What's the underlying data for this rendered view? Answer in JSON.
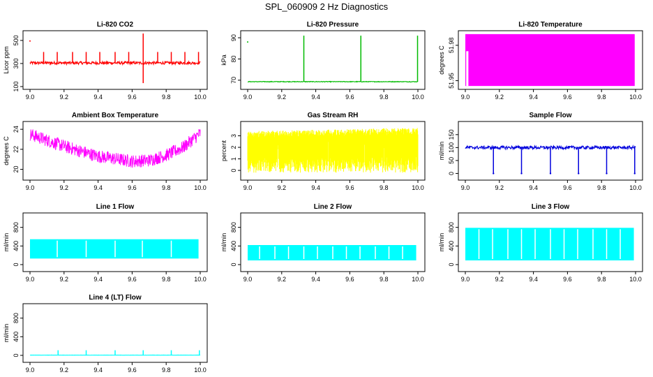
{
  "figure": {
    "title": "SPL_060909  2 Hz Diagnostics"
  },
  "chart_data": [
    {
      "id": "p1",
      "type": "line",
      "title": "Li-820 CO2",
      "ylabel": "Licor ppm",
      "color": "#ff0000",
      "xlim": [
        9.0,
        10.0
      ],
      "ylim": [
        100,
        560
      ],
      "xticks": [
        "9.0",
        "9.2",
        "9.4",
        "9.6",
        "9.8",
        "10.0"
      ],
      "yticks": [
        "100",
        "300",
        "500"
      ],
      "series": [
        {
          "name": "CO2",
          "pattern": "spikes",
          "base": 305,
          "noise": 12,
          "spikes_at": [
            9.08,
            9.16,
            9.25,
            9.33,
            9.41,
            9.5,
            9.58,
            9.75,
            9.83,
            9.91,
            9.99
          ],
          "spike_top": 400,
          "extreme_at": 9.665,
          "extreme_range": [
            130,
            560
          ],
          "outliers": [
            {
              "x": 9.0,
              "y": 495
            }
          ]
        }
      ]
    },
    {
      "id": "p2",
      "type": "line",
      "title": "Li-820 Pressure",
      "ylabel": "kPa",
      "color": "#00bb00",
      "xlim": [
        9.0,
        10.0
      ],
      "ylim": [
        67,
        92
      ],
      "xticks": [
        "9.0",
        "9.2",
        "9.4",
        "9.6",
        "9.8",
        "10.0"
      ],
      "yticks": [
        "70",
        "80",
        "90"
      ],
      "series": [
        {
          "name": "Pressure",
          "pattern": "spikes",
          "base": 69.3,
          "noise": 0.15,
          "spikes_at": [
            9.33,
            9.665,
            9.998
          ],
          "spike_top": 91,
          "outliers": [
            {
              "x": 9.0,
              "y": 88
            }
          ]
        }
      ]
    },
    {
      "id": "p3",
      "type": "area",
      "title": "Li-820 Temperature",
      "ylabel": "degrees C",
      "color": "#ff00ff",
      "xlim": [
        9.0,
        10.0
      ],
      "ylim": [
        51.945,
        51.99
      ],
      "xticks": [
        "9.0",
        "9.2",
        "9.4",
        "9.6",
        "9.8",
        "10.0"
      ],
      "yticks": [
        "51.95",
        "51.98"
      ],
      "series": [
        {
          "name": "Temperature",
          "pattern": "block",
          "low": 51.9455,
          "high": 51.9895,
          "x_start": 9.0,
          "x_end": 9.995,
          "gap": [
            9.005,
            9.018
          ]
        }
      ]
    },
    {
      "id": "p4",
      "type": "line",
      "title": "Ambient Box Temperature",
      "ylabel": "degrees C",
      "color": "#ff00ff",
      "xlim": [
        9.0,
        10.0
      ],
      "ylim": [
        19.2,
        24.5
      ],
      "xticks": [
        "9.0",
        "9.2",
        "9.4",
        "9.6",
        "9.8",
        "10.0"
      ],
      "yticks": [
        "20",
        "22",
        "24"
      ],
      "series": [
        {
          "name": "Box Temp",
          "pattern": "curve",
          "trend_x": [
            9.0,
            9.2,
            9.4,
            9.6,
            9.7,
            9.8,
            9.9,
            10.0
          ],
          "trend_y": [
            23.5,
            22.3,
            21.3,
            20.8,
            20.9,
            21.4,
            22.2,
            23.6
          ],
          "noise": 1.3
        }
      ]
    },
    {
      "id": "p5",
      "type": "line",
      "title": "Gas Stream RH",
      "ylabel": "percent",
      "color": "#ffff00",
      "xlim": [
        9.0,
        10.0
      ],
      "ylim": [
        -0.6,
        4.0
      ],
      "xticks": [
        "9.0",
        "9.2",
        "9.4",
        "9.6",
        "9.8",
        "10.0"
      ],
      "yticks": [
        "0",
        "1",
        "2",
        "3"
      ],
      "series": [
        {
          "name": "RH",
          "pattern": "band",
          "low": -0.2,
          "high": 3.4,
          "high_end": 3.7
        }
      ]
    },
    {
      "id": "p6",
      "type": "line",
      "title": "Sample Flow",
      "ylabel": "ml/min",
      "color": "#0000dd",
      "xlim": [
        9.0,
        10.0
      ],
      "ylim": [
        -15,
        190
      ],
      "xticks": [
        "9.0",
        "9.2",
        "9.4",
        "9.6",
        "9.8",
        "10.0"
      ],
      "yticks": [
        "0",
        "50",
        "100",
        "150"
      ],
      "series": [
        {
          "name": "Flow",
          "pattern": "dips",
          "base": 100,
          "noise": 6,
          "dips_at": [
            9.165,
            9.33,
            9.5,
            9.665,
            9.83,
            9.995
          ],
          "dip_bottom": 0
        }
      ]
    },
    {
      "id": "p7",
      "type": "area",
      "title": "Line 1 Flow",
      "ylabel": "ml/min",
      "color": "#00ffff",
      "xlim": [
        9.0,
        10.0
      ],
      "ylim": [
        -90,
        1050
      ],
      "xticks": [
        "9.0",
        "9.2",
        "9.4",
        "9.6",
        "9.8",
        "10.0"
      ],
      "yticks": [
        "0",
        "400",
        "800"
      ],
      "series": [
        {
          "name": "Line 1",
          "pattern": "slab",
          "low": 130,
          "high": 545,
          "x_end": 9.99,
          "gaps_at": [
            9.16,
            9.33,
            9.5,
            9.66,
            9.83
          ]
        }
      ]
    },
    {
      "id": "p8",
      "type": "area",
      "title": "Line 2 Flow",
      "ylabel": "ml/min",
      "color": "#00ffff",
      "xlim": [
        9.0,
        10.0
      ],
      "ylim": [
        -90,
        1050
      ],
      "xticks": [
        "9.0",
        "9.2",
        "9.4",
        "9.6",
        "9.8",
        "10.0"
      ],
      "yticks": [
        "0",
        "400",
        "800"
      ],
      "series": [
        {
          "name": "Line 2",
          "pattern": "slab",
          "low": 90,
          "high": 420,
          "x_end": 9.99,
          "gaps_at": [
            9.07,
            9.16,
            9.24,
            9.33,
            9.41,
            9.5,
            9.58,
            9.66,
            9.75,
            9.83,
            9.91
          ]
        }
      ]
    },
    {
      "id": "p9",
      "type": "area",
      "title": "Line 3 Flow",
      "ylabel": "ml/min",
      "color": "#00ffff",
      "xlim": [
        9.0,
        10.0
      ],
      "ylim": [
        -90,
        1050
      ],
      "xticks": [
        "9.0",
        "9.2",
        "9.4",
        "9.6",
        "9.8",
        "10.0"
      ],
      "yticks": [
        "0",
        "400",
        "800"
      ],
      "series": [
        {
          "name": "Line 3",
          "pattern": "slab",
          "low": 90,
          "high": 790,
          "x_end": 9.99,
          "gaps_at": [
            9.08,
            9.16,
            9.25,
            9.33,
            9.41,
            9.5,
            9.58,
            9.66,
            9.75,
            9.83,
            9.91
          ]
        }
      ]
    },
    {
      "id": "p10",
      "type": "line",
      "title": "Line 4 (LT) Flow",
      "ylabel": "ml/min",
      "color": "#00ffff",
      "xlim": [
        9.0,
        10.0
      ],
      "ylim": [
        -90,
        1050
      ],
      "xticks": [
        "9.0",
        "9.2",
        "9.4",
        "9.6",
        "9.8",
        "10.0"
      ],
      "yticks": [
        "0",
        "400",
        "800"
      ],
      "series": [
        {
          "name": "Line 4",
          "pattern": "spikes",
          "base": 5,
          "noise": 2,
          "spikes_at": [
            9.165,
            9.33,
            9.5,
            9.665,
            9.83,
            9.995
          ],
          "spike_top": 110
        }
      ]
    }
  ]
}
